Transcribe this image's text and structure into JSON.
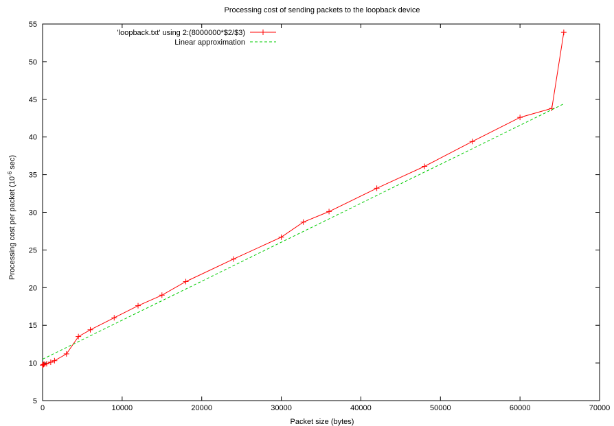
{
  "chart_data": {
    "type": "line",
    "title": "Processing cost of sending packets to the loopback device",
    "xlabel": "Packet size (bytes)",
    "ylabel_prefix": "Processing cost per packet (10",
    "ylabel_exp": "-6",
    "ylabel_suffix": " sec)",
    "xlim": [
      0,
      70000
    ],
    "ylim": [
      5,
      55
    ],
    "xticks": [
      0,
      10000,
      20000,
      30000,
      40000,
      50000,
      60000,
      70000
    ],
    "yticks": [
      5,
      10,
      15,
      20,
      25,
      30,
      35,
      40,
      45,
      50,
      55
    ],
    "grid": false,
    "legend_position": "top-left",
    "series": [
      {
        "name": "'loopback.txt' using 2:(8000000*$2/$3)",
        "color": "#ff0000",
        "style": "line+cross",
        "x": [
          0,
          64,
          128,
          256,
          512,
          1024,
          1500,
          3000,
          4500,
          6000,
          9000,
          12000,
          15000,
          18000,
          24000,
          30000,
          32768,
          36000,
          42000,
          48000,
          54000,
          60000,
          64000,
          65500
        ],
        "y": [
          9.7,
          9.75,
          9.8,
          9.85,
          9.9,
          10.1,
          10.3,
          11.2,
          13.5,
          14.4,
          16.0,
          17.6,
          19.0,
          20.8,
          23.8,
          26.7,
          28.7,
          30.1,
          33.2,
          36.1,
          39.4,
          42.6,
          43.8,
          53.9
        ]
      },
      {
        "name": "Linear approximation",
        "color": "#00cc00",
        "style": "dashed",
        "x": [
          0,
          65500
        ],
        "y": [
          10.5,
          44.4
        ]
      }
    ]
  }
}
